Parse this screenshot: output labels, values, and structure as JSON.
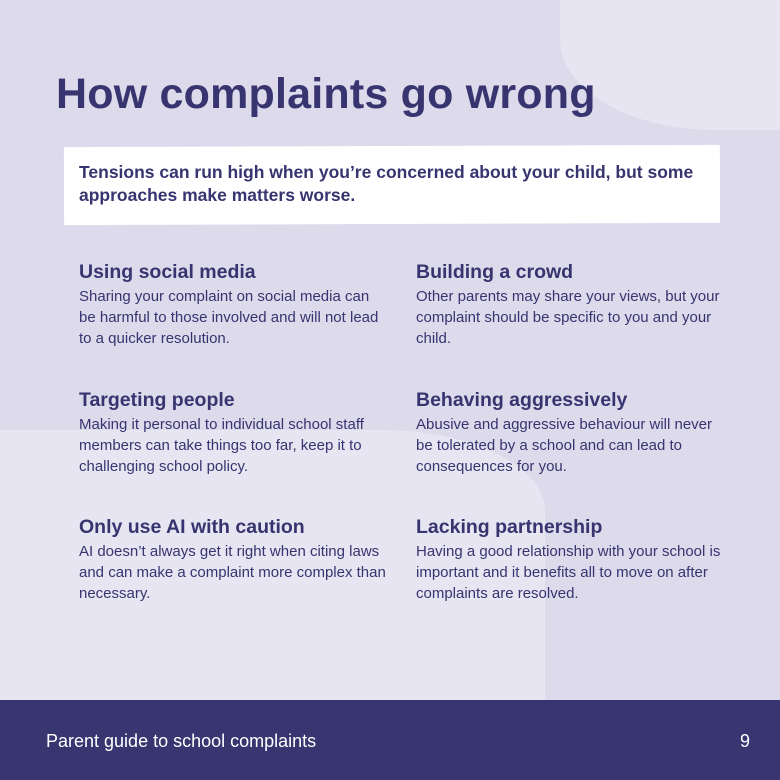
{
  "title": "How complaints go wrong",
  "subtitle": "Tensions can run high when you’re concerned about your child, but some approaches make matters worse.",
  "items": [
    {
      "heading": "Using social media",
      "body": "Sharing your complaint on social media can be harmful to those involved and will not lead to a quicker resolution."
    },
    {
      "heading": "Building a crowd",
      "body": "Other parents may share your views, but your complaint should be specific to you and your child."
    },
    {
      "heading": "Targeting people",
      "body": "Making it personal to individual school staff members can take things too far, keep it to challenging school policy."
    },
    {
      "heading": "Behaving aggressively",
      "body": "Abusive and aggressive behaviour will never be tolerated by a school and can lead to consequences for you."
    },
    {
      "heading": "Only use AI with caution",
      "body": "AI doesn’t always get it right when citing laws and can make a complaint more complex than necessary."
    },
    {
      "heading": "Lacking partnership",
      "body": "Having a good relationship with your school is important and it benefits all to move on after complaints are resolved."
    }
  ],
  "footer": {
    "title": "Parent guide to school complaints",
    "page": "9"
  },
  "colors": {
    "primary": "#37346f",
    "background": "#dcdaeb",
    "footer": "#383670"
  }
}
